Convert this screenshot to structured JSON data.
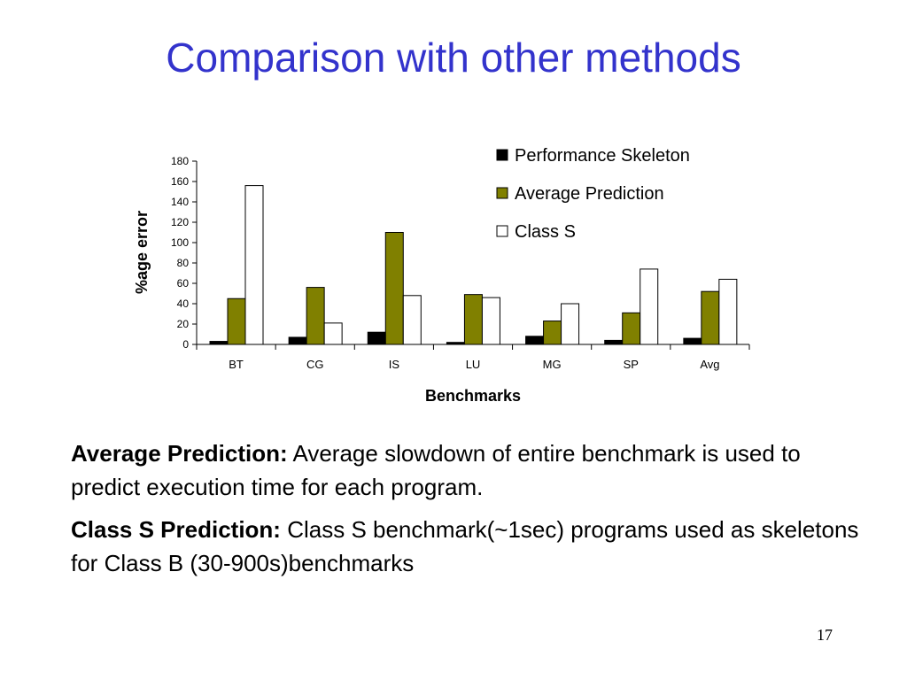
{
  "slide": {
    "title": "Comparison with other methods",
    "page_number": "17"
  },
  "notes": [
    {
      "label": "Average Prediction:",
      "text": "Average slowdown of entire benchmark is used to predict execution time for each program."
    },
    {
      "label": "Class S Prediction:",
      "text": "Class S benchmark(~1sec) programs used as skeletons for Class B (30-900s)benchmarks"
    }
  ],
  "chart_data": {
    "type": "bar",
    "title": "",
    "xlabel": "Benchmarks",
    "ylabel": "%age error",
    "ylim": [
      0,
      180
    ],
    "yticks": [
      "0",
      "20",
      "40",
      "60",
      "80",
      "100",
      "120",
      "140",
      "160",
      "180"
    ],
    "categories": [
      "BT",
      "CG",
      "IS",
      "LU",
      "MG",
      "SP",
      "Avg"
    ],
    "legend_position": "top-right",
    "grid": false,
    "series": [
      {
        "name": "Performance Skeleton",
        "color": "#000000",
        "values": [
          3,
          7,
          12,
          2,
          8,
          4,
          6
        ]
      },
      {
        "name": "Average Prediction",
        "color": "#808000",
        "values": [
          45,
          56,
          110,
          49,
          23,
          31,
          52
        ]
      },
      {
        "name": "Class S",
        "color": "#ffffff",
        "values": [
          156,
          21,
          48,
          46,
          40,
          74,
          64
        ]
      }
    ]
  }
}
